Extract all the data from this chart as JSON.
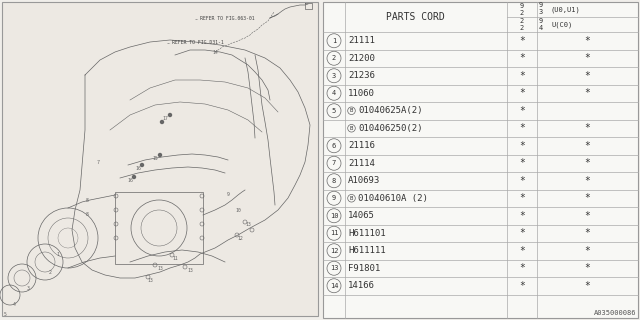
{
  "bg_color": "#f0eeea",
  "diagram_bg": "#ede9e3",
  "table_bg": "#ffffff",
  "border_color": "#888888",
  "text_color": "#333333",
  "lc": "#666666",
  "parts": [
    {
      "num": "1",
      "code": "21111",
      "b_prefix": false,
      "col2": "*",
      "col3": "*"
    },
    {
      "num": "2",
      "code": "21200",
      "b_prefix": false,
      "col2": "*",
      "col3": "*"
    },
    {
      "num": "3",
      "code": "21236",
      "b_prefix": false,
      "col2": "*",
      "col3": "*"
    },
    {
      "num": "4",
      "code": "11060",
      "b_prefix": false,
      "col2": "*",
      "col3": "*"
    },
    {
      "num": "5a",
      "code": "01040625A(2)",
      "b_prefix": true,
      "col2": "*",
      "col3": ""
    },
    {
      "num": "5b",
      "code": "010406250(2)",
      "b_prefix": true,
      "col2": "*",
      "col3": "*"
    },
    {
      "num": "6",
      "code": "21116",
      "b_prefix": false,
      "col2": "*",
      "col3": "*"
    },
    {
      "num": "7",
      "code": "21114",
      "b_prefix": false,
      "col2": "*",
      "col3": "*"
    },
    {
      "num": "8",
      "code": "A10693",
      "b_prefix": false,
      "col2": "*",
      "col3": "*"
    },
    {
      "num": "9",
      "code": "01040610A (2)",
      "b_prefix": true,
      "col2": "*",
      "col3": "*"
    },
    {
      "num": "10",
      "code": "14065",
      "b_prefix": false,
      "col2": "*",
      "col3": "*"
    },
    {
      "num": "11",
      "code": "H611101",
      "b_prefix": false,
      "col2": "*",
      "col3": "*"
    },
    {
      "num": "12",
      "code": "H611111",
      "b_prefix": false,
      "col2": "*",
      "col3": "*"
    },
    {
      "num": "13",
      "code": "F91801",
      "b_prefix": false,
      "col2": "*",
      "col3": "*"
    },
    {
      "num": "14",
      "code": "14166",
      "b_prefix": false,
      "col2": "*",
      "col3": "*"
    }
  ],
  "ref_code": "A035000086",
  "note1": "REFER TO FIG.063-01",
  "note2": "REFER TO FIG.D31-1"
}
